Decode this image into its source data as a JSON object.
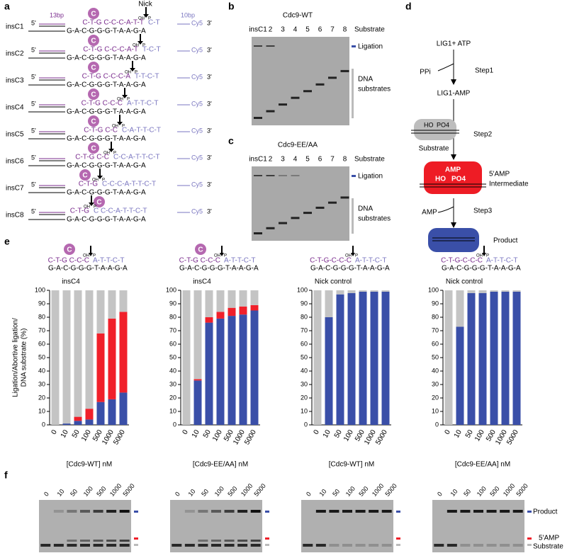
{
  "panel_labels": {
    "a": "a",
    "b": "b",
    "c": "c",
    "d": "d",
    "e": "e",
    "f": "f"
  },
  "panel_a": {
    "label_13bp": "13bp",
    "label_10bp": "10bp",
    "nick": "Nick",
    "five_prime": "5'",
    "three_prime": "3'",
    "cy5": "Cy5",
    "insertion": "C",
    "oh": "OH",
    "p": "P",
    "bottom_strand": "G-A-C-G-G-G-T-A-A-G-A",
    "constructs": [
      {
        "name": "insC1",
        "top_left": "C-T-G C-C-C-A-T-T",
        "top_right": "C-T"
      },
      {
        "name": "insC2",
        "top_left": "C-T-G C-C-C-A-T",
        "top_right": "T-C-T"
      },
      {
        "name": "insC3",
        "top_left": "C-T-G C-C-C-A",
        "top_right": "T-T-C-T"
      },
      {
        "name": "insC4",
        "top_left": "C-T-G C-C-C",
        "top_right": "A-T-T-C-T"
      },
      {
        "name": "insC5",
        "top_left": "C-T-G C-C",
        "top_right": "C-A-T-T-C-T"
      },
      {
        "name": "insC6",
        "top_left": "C-T-G C-C",
        "top_right": "C-C-A-T-T-C-T"
      },
      {
        "name": "insC7",
        "top_left": "C-T-G",
        "top_right": "C-C-C-A-T-T-C-T"
      },
      {
        "name": "insC8",
        "top_left": "C-T-G",
        "top_right": "C C-C-A-T-T-C-T"
      }
    ]
  },
  "gel_lanes": [
    "insC1",
    "2",
    "3",
    "4",
    "5",
    "6",
    "7",
    "8"
  ],
  "panel_b": {
    "title": "Cdc9-WT",
    "lane_header": "Substrate",
    "ligation": "Ligation",
    "dna_substrates": [
      "DNA",
      "substrates"
    ]
  },
  "panel_c": {
    "title": "Cdc9-EE/AA",
    "lane_header": "Substrate",
    "ligation": "Ligation",
    "dna_substrates": [
      "DNA",
      "substrates"
    ]
  },
  "panel_d": {
    "lig1_atp": "LIG1+ ATP",
    "ppi": "PPi",
    "step1": "Step1",
    "lig1_amp": "LIG1-AMP",
    "ho": "HO",
    "po4": "PO4",
    "step2": "Step2",
    "substrate": "Substrate",
    "amp": "AMP",
    "intermediate": [
      "5'AMP",
      "Intermediate"
    ],
    "amp_release": "AMP",
    "step3": "Step3",
    "product": "Product"
  },
  "panel_e_structures": [
    {
      "insertion": "C",
      "oh": "OH",
      "p": "P",
      "top_left": "C-T-G C-C-C",
      "top_right": "A-T-T-C-T",
      "bottom": "G-A-C-G-G-G-T-A-A-G-A"
    },
    {
      "insertion": "C",
      "oh": "OH",
      "p": "P",
      "top_left": "C-T-G C-C-C",
      "top_right": "A-T-T-C-T",
      "bottom": "G-A-C-G-G-G-T-A-A-G-A"
    },
    {
      "oh": "OH",
      "p": "P",
      "top_left": "C-T-G-C-C-C",
      "top_right": "A-T-T-C-T",
      "bottom": "G-A-C-G-G-G-T-A-A-G-A"
    },
    {
      "oh": "OH",
      "p": "P",
      "top_left": "C-T-G-C-C-C",
      "top_right": "A-T-T-C-T",
      "bottom": "G-A-C-G-G-G-T-A-A-G-A"
    }
  ],
  "chart_data": [
    {
      "type": "bar",
      "stacked": true,
      "title": "insC4",
      "xlabel": "[Cdc9-WT] nM",
      "ylabel": [
        "Ligation/Abortive ligation/",
        "DNA substrate (%)"
      ],
      "categories": [
        "0",
        "10",
        "50",
        "100",
        "500",
        "1000",
        "5000"
      ],
      "series": [
        {
          "color": "#3a4fa8",
          "values": [
            0,
            1,
            3,
            4,
            17,
            19,
            24
          ]
        },
        {
          "color": "#f0202a",
          "values": [
            0,
            0,
            3,
            8,
            51,
            60,
            60
          ]
        },
        {
          "color": "#c4c4c4",
          "values": [
            100,
            99,
            94,
            88,
            32,
            21,
            16
          ]
        }
      ],
      "ylim": [
        0,
        100
      ],
      "yticks": [
        0,
        10,
        20,
        30,
        40,
        50,
        60,
        70,
        80,
        90,
        100
      ]
    },
    {
      "type": "bar",
      "stacked": true,
      "title": "insC4",
      "xlabel": "[Cdc9-EE/AA] nM",
      "categories": [
        "0",
        "10",
        "50",
        "100",
        "500",
        "1000",
        "5000"
      ],
      "series": [
        {
          "color": "#3a4fa8",
          "values": [
            0,
            33,
            76,
            79,
            81,
            82,
            85
          ]
        },
        {
          "color": "#f0202a",
          "values": [
            0,
            1,
            4,
            5,
            6,
            6,
            4
          ]
        },
        {
          "color": "#c4c4c4",
          "values": [
            100,
            66,
            20,
            16,
            13,
            12,
            11
          ]
        }
      ],
      "ylim": [
        0,
        100
      ],
      "yticks": [
        0,
        10,
        20,
        30,
        40,
        50,
        60,
        70,
        80,
        90,
        100
      ]
    },
    {
      "type": "bar",
      "stacked": true,
      "title": "Nick control",
      "xlabel": "[Cdc9-WT] nM",
      "categories": [
        "0",
        "10",
        "50",
        "100",
        "500",
        "1000",
        "5000"
      ],
      "series": [
        {
          "color": "#3a4fa8",
          "values": [
            0,
            80,
            97,
            98,
            99,
            99,
            99
          ]
        },
        {
          "color": "#f0202a",
          "values": [
            0,
            0,
            0,
            0,
            0,
            0,
            0
          ]
        },
        {
          "color": "#c4c4c4",
          "values": [
            100,
            20,
            3,
            2,
            1,
            1,
            1
          ]
        }
      ],
      "ylim": [
        0,
        100
      ],
      "yticks": [
        0,
        10,
        20,
        30,
        40,
        50,
        60,
        70,
        80,
        90,
        100
      ]
    },
    {
      "type": "bar",
      "stacked": true,
      "title": "Nick control",
      "xlabel": "[Cdc9-EE/AA] nM",
      "categories": [
        "0",
        "10",
        "50",
        "100",
        "500",
        "1000",
        "5000"
      ],
      "series": [
        {
          "name": "Product",
          "color": "#3a4fa8",
          "values": [
            0,
            73,
            98,
            98,
            99,
            99,
            99
          ]
        },
        {
          "name": "5'AMP",
          "color": "#f0202a",
          "values": [
            0,
            0,
            0,
            0,
            0,
            0,
            0
          ]
        },
        {
          "name": "Substrate",
          "color": "#c4c4c4",
          "values": [
            100,
            27,
            2,
            2,
            1,
            1,
            1
          ]
        }
      ],
      "ylim": [
        0,
        100
      ],
      "yticks": [
        0,
        10,
        20,
        30,
        40,
        50,
        60,
        70,
        80,
        90,
        100
      ]
    }
  ]
}
